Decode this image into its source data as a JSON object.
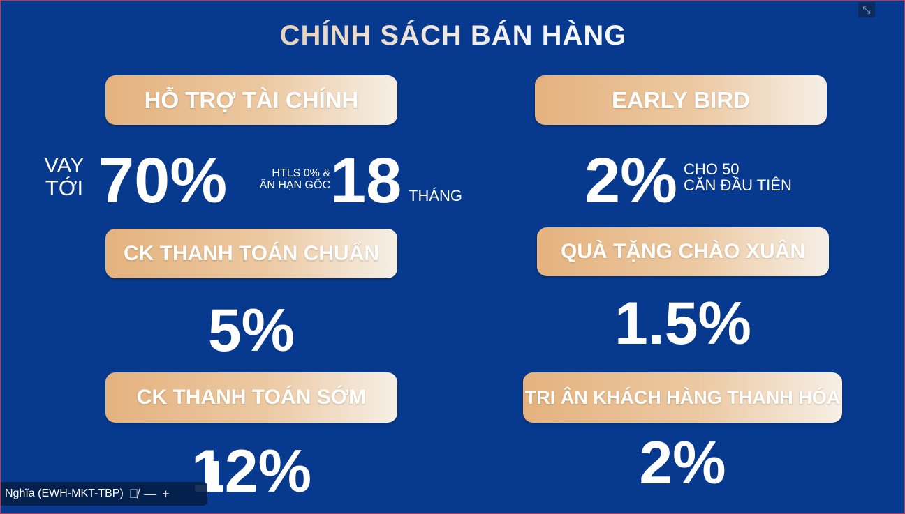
{
  "title": "CHÍNH SÁCH BÁN HÀNG",
  "sections": {
    "financial": {
      "label": "HỖ TRỢ TÀI CHÍNH",
      "loan_prefix": "VAY TỚI",
      "loan_value": "70%",
      "interest_note_1": "HTLS 0% &",
      "interest_note_2": "ÂN HẠN GỐC",
      "months_value": "18",
      "months_unit": "THÁNG"
    },
    "early_bird": {
      "label": "EARLY BIRD",
      "value": "2%",
      "note_1": "CHO 50",
      "note_2": "CĂN ĐẦU TIÊN"
    },
    "standard_payment": {
      "label": "CK THANH TOÁN CHUẨN",
      "value": "5%"
    },
    "spring_gift": {
      "label": "QUÀ TẶNG CHÀO XUÂN",
      "value": "1.5%"
    },
    "early_payment": {
      "label": "CK THANH TOÁN SỚM",
      "value": "12%"
    },
    "customer_thanks": {
      "label": "TRI ÂN KHÁCH HÀNG THANH HÓA",
      "value": "2%"
    }
  },
  "participant": {
    "name": "Nghĩa (EWH-MKT-TBP)",
    "mic_icon": "mic-muted-icon"
  },
  "colors": {
    "background": "#073a8e",
    "pill_start": "#e4b27e",
    "pill_end": "#f6efe6"
  }
}
